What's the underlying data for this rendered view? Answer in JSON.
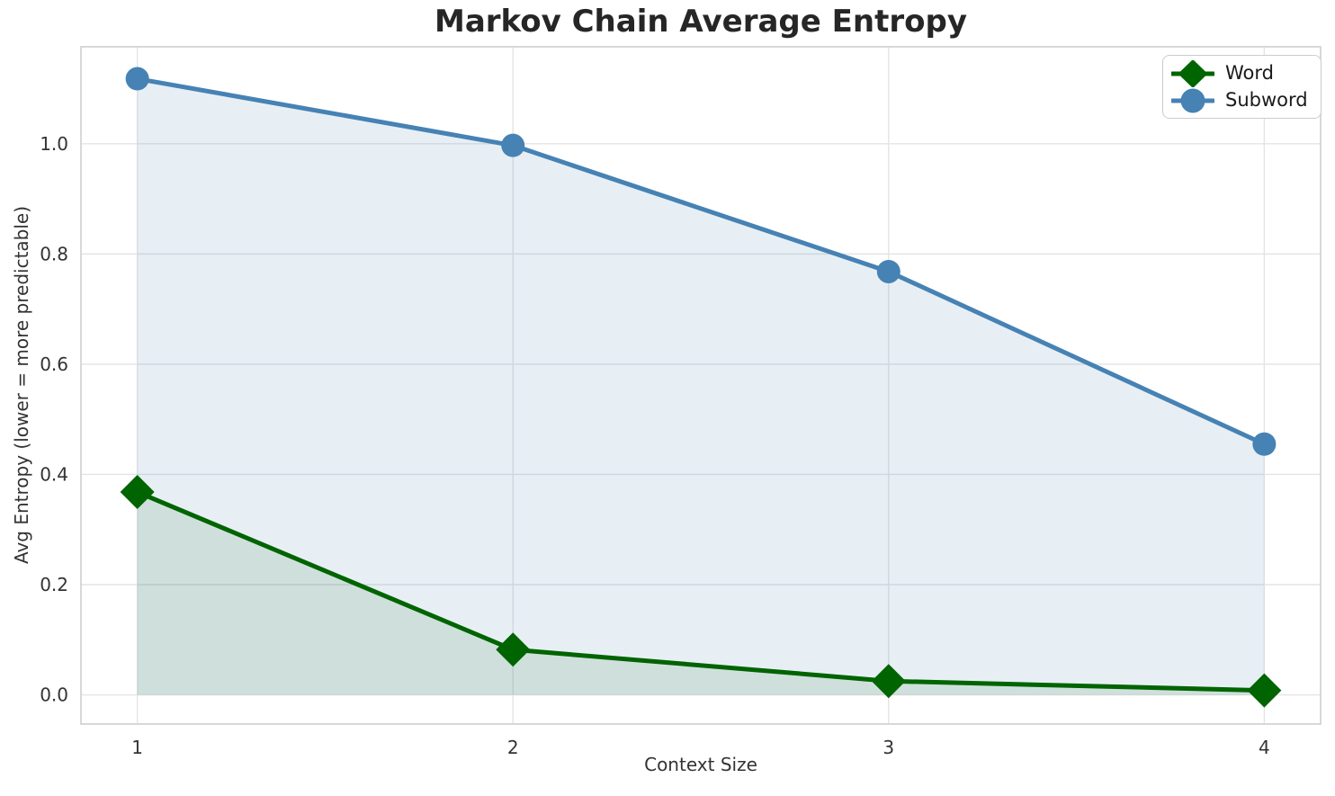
{
  "chart_data": {
    "type": "line",
    "title": "Markov Chain Average Entropy",
    "xlabel": "Context Size",
    "ylabel": "Avg Entropy (lower = more predictable)",
    "x": [
      1,
      2,
      3,
      4
    ],
    "xticks": [
      1,
      2,
      3,
      4
    ],
    "yticks": [
      0.0,
      0.2,
      0.4,
      0.6,
      0.8,
      1.0
    ],
    "xlim": [
      0.85,
      4.15
    ],
    "ylim": [
      -0.053,
      1.176
    ],
    "grid": true,
    "legend_position": "upper right",
    "series": [
      {
        "name": "Word",
        "values": [
          0.368,
          0.082,
          0.025,
          0.008
        ],
        "color": "#006400",
        "marker": "diamond",
        "fill_to_zero": true,
        "fill_opacity": 0.1
      },
      {
        "name": "Subword",
        "values": [
          1.118,
          0.997,
          0.768,
          0.455
        ],
        "color": "#4682B4",
        "marker": "circle",
        "fill_to_zero": true,
        "fill_opacity": 0.13
      }
    ]
  }
}
